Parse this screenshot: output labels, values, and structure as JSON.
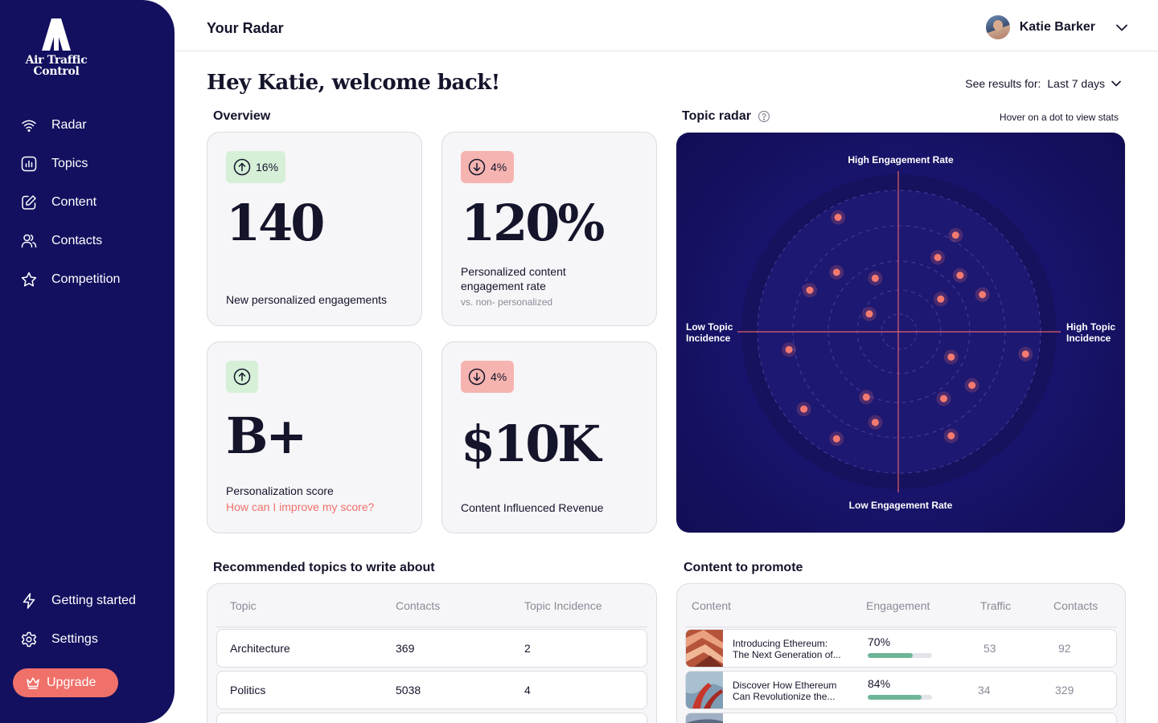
{
  "brand": {
    "name_line1": "Air Traffic",
    "name_line2": "Control",
    "accent": "#f0716a",
    "sidebar_bg": "#13105f"
  },
  "nav": {
    "items": [
      {
        "label": "Radar",
        "icon": "wifi-icon"
      },
      {
        "label": "Topics",
        "icon": "chart-icon"
      },
      {
        "label": "Content",
        "icon": "edit-icon"
      },
      {
        "label": "Contacts",
        "icon": "users-icon"
      },
      {
        "label": "Competition",
        "icon": "star-icon"
      }
    ],
    "bottom": [
      {
        "label": "Getting started",
        "icon": "bolt-icon"
      },
      {
        "label": "Settings",
        "icon": "gear-icon"
      }
    ],
    "upgrade_label": "Upgrade"
  },
  "header": {
    "page_label": "Your Radar",
    "user_name": "Katie Barker"
  },
  "main": {
    "welcome": "Hey Katie, welcome back!",
    "results_label": "See results for:",
    "results_value": "Last 7 days"
  },
  "overview": {
    "title": "Overview",
    "cards": [
      {
        "badge": "16%",
        "direction": "up",
        "value": "140",
        "label": "New  personalized engagements"
      },
      {
        "badge": "4%",
        "direction": "down",
        "value": "120%",
        "label": "Personalized content engagement rate",
        "sub": "vs. non- personalized"
      },
      {
        "badge": "",
        "direction": "up",
        "value": "B+",
        "label": "Personalization score",
        "link": "How can I improve my score?"
      },
      {
        "badge": "4%",
        "direction": "down",
        "value": "$10K",
        "label": "Content Influenced Revenue"
      }
    ]
  },
  "radar": {
    "title": "Topic radar",
    "hint": "Hover on a dot to view stats",
    "top_label": "High Engagement Rate",
    "bottom_label": "Low Engagement Rate",
    "left_label_1": "Low Topic",
    "left_label_2": "Incidence",
    "right_label_1": "High Topic",
    "right_label_2": "Incidence",
    "points": [
      [
        -0.41,
        0.77
      ],
      [
        0.38,
        0.65
      ],
      [
        0.26,
        0.5
      ],
      [
        0.41,
        0.38
      ],
      [
        -0.42,
        0.4
      ],
      [
        -0.16,
        0.36
      ],
      [
        -0.6,
        0.28
      ],
      [
        0.28,
        0.22
      ],
      [
        0.56,
        0.25
      ],
      [
        -0.2,
        0.12
      ],
      [
        -0.74,
        -0.12
      ],
      [
        0.35,
        -0.17
      ],
      [
        0.85,
        -0.15
      ],
      [
        0.49,
        -0.36
      ],
      [
        -0.22,
        -0.44
      ],
      [
        0.3,
        -0.45
      ],
      [
        -0.64,
        -0.52
      ],
      [
        -0.16,
        -0.61
      ],
      [
        -0.42,
        -0.72
      ],
      [
        0.35,
        -0.7
      ]
    ]
  },
  "topics_table": {
    "title": "Recommended topics to write about",
    "columns": [
      "Topic",
      "Contacts",
      "Topic Incidence"
    ],
    "rows": [
      [
        "Architecture",
        "369",
        "2"
      ],
      [
        "Politics",
        "5038",
        "4"
      ]
    ]
  },
  "content_table": {
    "title": "Content to promote",
    "columns": [
      "Content",
      "Engagement",
      "Traffic",
      "Contacts"
    ],
    "rows": [
      {
        "title1": "Introducing Ethereum:",
        "title2": "The Next Generation of...",
        "engagement": "70%",
        "engagement_value": 70,
        "traffic": "53",
        "contacts": "92"
      },
      {
        "title1": "Discover How Ethereum",
        "title2": "Can Revolutionize the...",
        "engagement": "84%",
        "engagement_value": 84,
        "traffic": "34",
        "contacts": "329"
      }
    ]
  }
}
